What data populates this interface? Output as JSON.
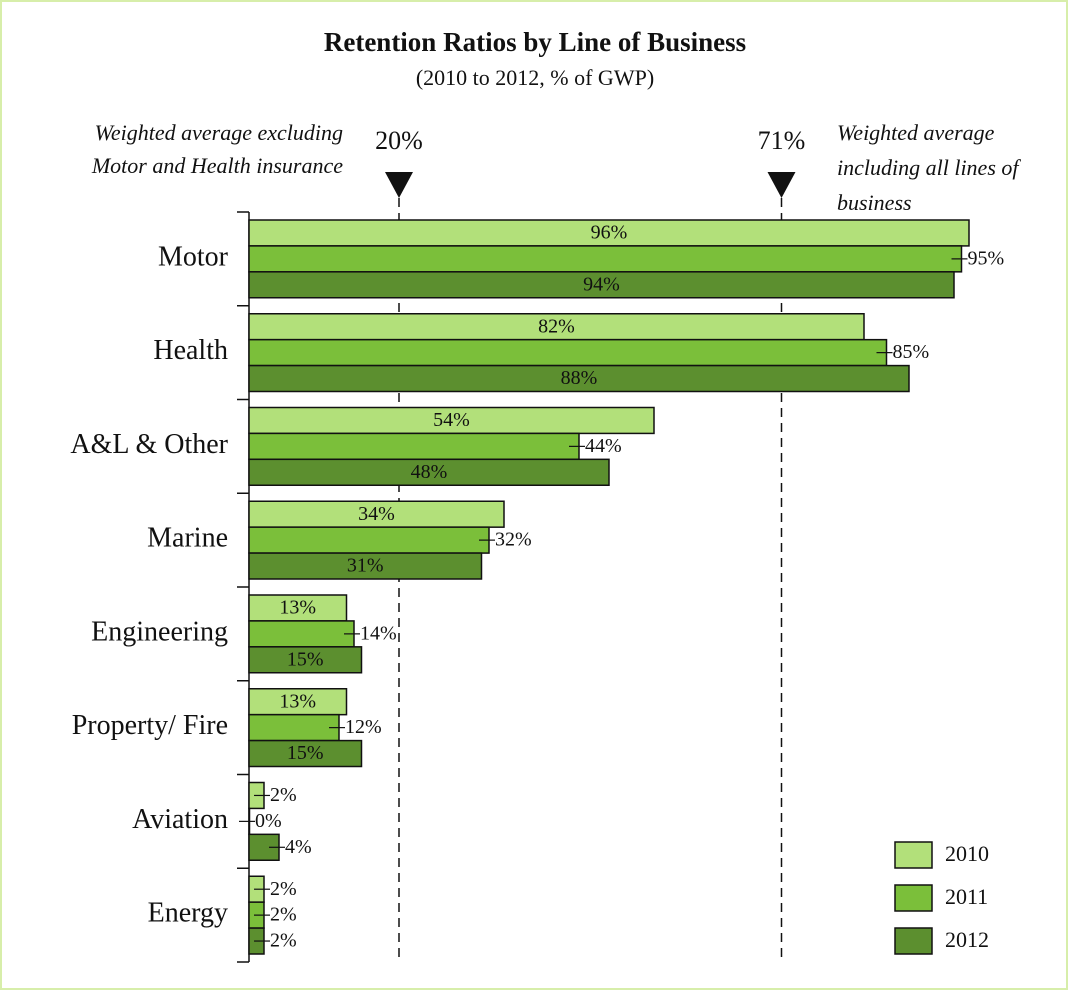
{
  "chart_data": {
    "type": "bar",
    "orientation": "horizontal",
    "title": "Retention Ratios by Line of Business",
    "subtitle": "(2010 to 2012, % of GWP)",
    "categories": [
      "Motor",
      "Health",
      "A&L & Other",
      "Marine",
      "Engineering",
      "Property/ Fire",
      "Aviation",
      "Energy"
    ],
    "series": [
      {
        "name": "2010",
        "color": "#b2e07a",
        "values": [
          96,
          82,
          54,
          34,
          13,
          13,
          2,
          2
        ],
        "value_labels": [
          "96%",
          "82%",
          "54%",
          "34%",
          "13%",
          "13%",
          "2%",
          "2%"
        ]
      },
      {
        "name": "2011",
        "color": "#7bbf3a",
        "values": [
          95,
          85,
          44,
          32,
          14,
          12,
          0,
          2
        ],
        "value_labels": [
          "95%",
          "85%",
          "44%",
          "32%",
          "14%",
          "12%",
          "0%",
          "2%"
        ]
      },
      {
        "name": "2012",
        "color": "#5c8f2f",
        "values": [
          94,
          88,
          48,
          31,
          15,
          15,
          4,
          2
        ],
        "value_labels": [
          "94%",
          "88%",
          "48%",
          "31%",
          "15%",
          "15%",
          "4%",
          "2%"
        ]
      }
    ],
    "xlim": [
      0,
      100
    ],
    "reference_lines": [
      {
        "value": 20,
        "label": "20%",
        "note": [
          "Weighted average excluding",
          "Motor and Health insurance"
        ]
      },
      {
        "value": 71,
        "label": "71%",
        "note": [
          "Weighted average",
          "including all lines of",
          "business"
        ]
      }
    ],
    "legend": "bottom-right"
  }
}
